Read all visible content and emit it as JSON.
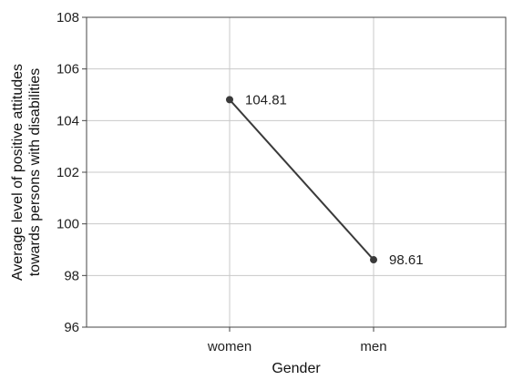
{
  "chart_data": {
    "type": "line",
    "title": "",
    "xlabel": "Gender",
    "ylabel_lines": [
      "Average level of positive attitudes",
      "towards persons with disabilities"
    ],
    "categories": [
      "women",
      "men"
    ],
    "series": [
      {
        "values": [
          104.81,
          98.61
        ],
        "labels": [
          "104.81",
          "98.61"
        ]
      }
    ],
    "ylim": [
      96,
      108
    ],
    "yticks": [
      "96",
      "98",
      "100",
      "102",
      "104",
      "106",
      "108"
    ],
    "grid": true,
    "colors": {
      "line": "#3a3a3a",
      "marker": "#3a3a3a",
      "grid": "#c8c8c8",
      "axis": "#444444"
    }
  }
}
